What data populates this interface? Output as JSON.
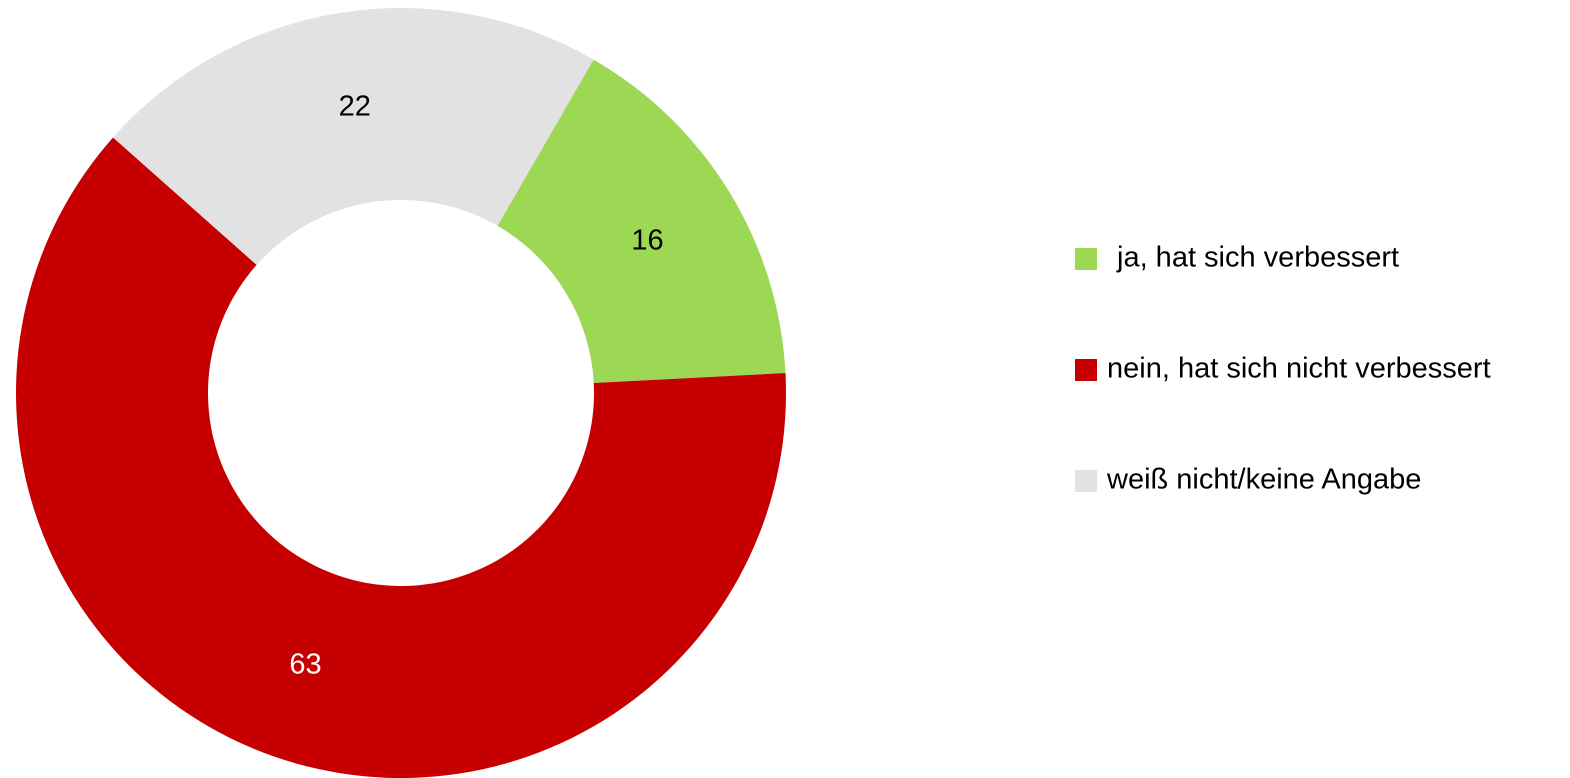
{
  "chart_data": {
    "type": "donut",
    "categories": [
      "ja, hat sich verbessert",
      "nein, hat sich nicht verbessert",
      "weiß nicht/keine Angabe"
    ],
    "values": [
      16,
      63,
      22
    ],
    "colors": [
      "#9dd855",
      "#c60000",
      "#e2e2e2"
    ],
    "legend": "right"
  }
}
